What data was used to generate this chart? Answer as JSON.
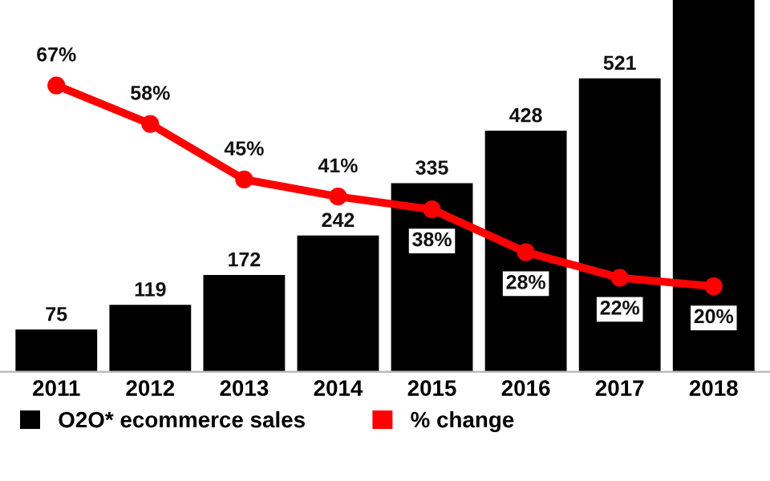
{
  "chart_data": {
    "type": "bar",
    "categories": [
      "2011",
      "2012",
      "2013",
      "2014",
      "2015",
      "2016",
      "2017",
      "2018"
    ],
    "series": [
      {
        "name": "O2O* ecommerce sales",
        "color": "#000000",
        "values": [
          75,
          119,
          172,
          242,
          335,
          428,
          521,
          660
        ],
        "value_labels": [
          "75",
          "119",
          "172",
          "242",
          "335",
          "428",
          "521",
          null
        ]
      },
      {
        "name": "% change",
        "type": "line",
        "axis": "y2",
        "color": "#ff0000",
        "marker": "circle",
        "values": [
          67,
          58,
          45,
          41,
          38,
          28,
          22,
          20
        ],
        "value_labels": [
          "67%",
          "58%",
          "45%",
          "41%",
          "38%",
          "28%",
          "22%",
          "20%"
        ]
      }
    ],
    "ylim": [
      0,
      660
    ],
    "y2lim": [
      0,
      87
    ],
    "tick_labels": "x",
    "grid": false,
    "legend": "bottom"
  }
}
